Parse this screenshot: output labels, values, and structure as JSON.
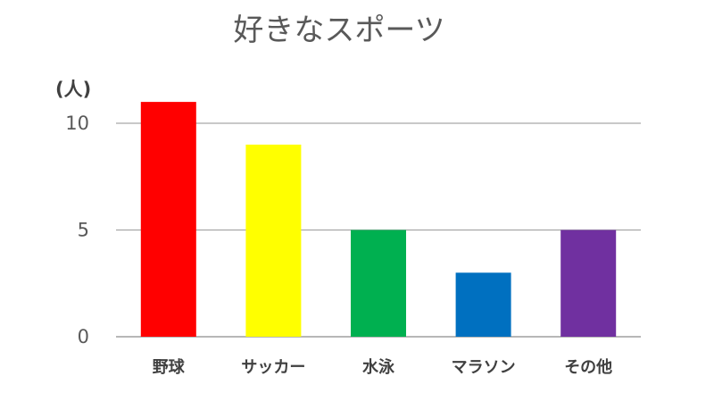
{
  "chart_data": {
    "type": "bar",
    "title": "好きなスポーツ",
    "unit_label": "(人)",
    "categories": [
      "野球",
      "サッカー",
      "水泳",
      "マラソン",
      "その他"
    ],
    "values": [
      11,
      9,
      5,
      3,
      5
    ],
    "colors": [
      "#ff0000",
      "#ffff00",
      "#00b050",
      "#0070c0",
      "#7030a0"
    ],
    "yticks": [
      0,
      5,
      10
    ],
    "ylim": [
      0,
      11
    ],
    "grid": true,
    "legend": "none"
  }
}
